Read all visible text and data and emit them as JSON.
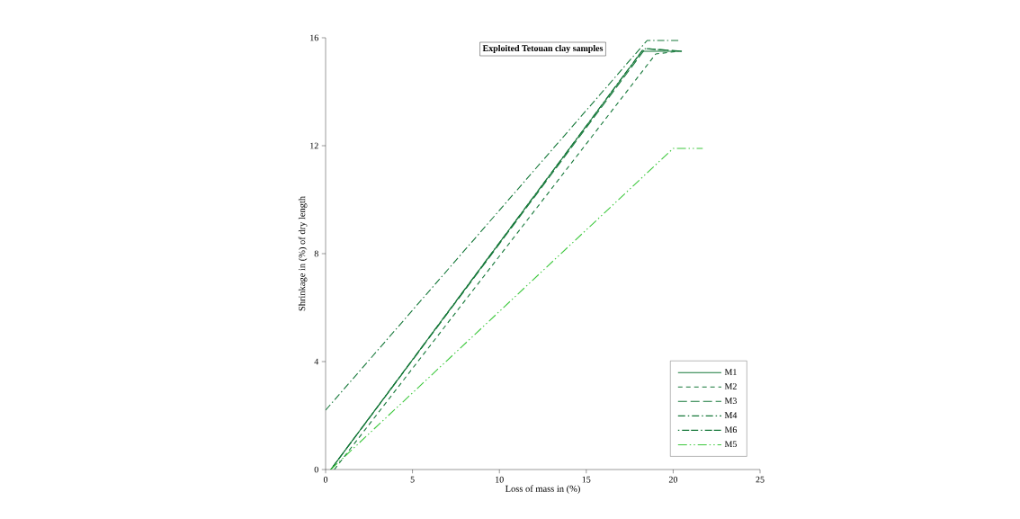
{
  "chart_data": {
    "type": "line",
    "title": "Exploited Tetouan clay samples",
    "xlabel": "Loss of mass in (%)",
    "ylabel": "Shrinkage in (%) of dry length",
    "xlim": [
      0,
      25
    ],
    "xticks": [
      0,
      5,
      10,
      15,
      20,
      25
    ],
    "ylim": [
      0,
      16
    ],
    "yticks": [
      0,
      4,
      8,
      12,
      16
    ],
    "grid": false,
    "legend": "bottom right",
    "marker": "none",
    "series": [
      {
        "name": "M1",
        "color": "#16783a",
        "line_style": "solid",
        "x": [
          0.3,
          18.2,
          20.5
        ],
        "values": [
          0,
          15.5,
          15.5
        ]
      },
      {
        "name": "M2",
        "color": "#16783a",
        "line_style": "dashed",
        "x": [
          0.5,
          19.0,
          20.3
        ],
        "values": [
          0,
          15.4,
          15.5
        ]
      },
      {
        "name": "M3",
        "color": "#16783a",
        "line_style": "longdash",
        "x": [
          0.3,
          18.4,
          20.5
        ],
        "values": [
          0,
          15.6,
          15.5
        ]
      },
      {
        "name": "M4",
        "color": "#16783a",
        "line_style": "dashdot",
        "x": [
          0,
          18.5,
          20.3
        ],
        "values": [
          2.2,
          15.9,
          15.9
        ]
      },
      {
        "name": "M6",
        "color": "#16783a",
        "line_style": "dotdash",
        "x": [
          0.3,
          18.3,
          20.5
        ],
        "values": [
          0,
          15.6,
          15.5
        ]
      },
      {
        "name": "M5",
        "color": "#3cc83c",
        "line_style": "dashdotdot",
        "x": [
          0.3,
          20.0,
          21.7
        ],
        "values": [
          0,
          11.9,
          11.9
        ]
      }
    ]
  }
}
